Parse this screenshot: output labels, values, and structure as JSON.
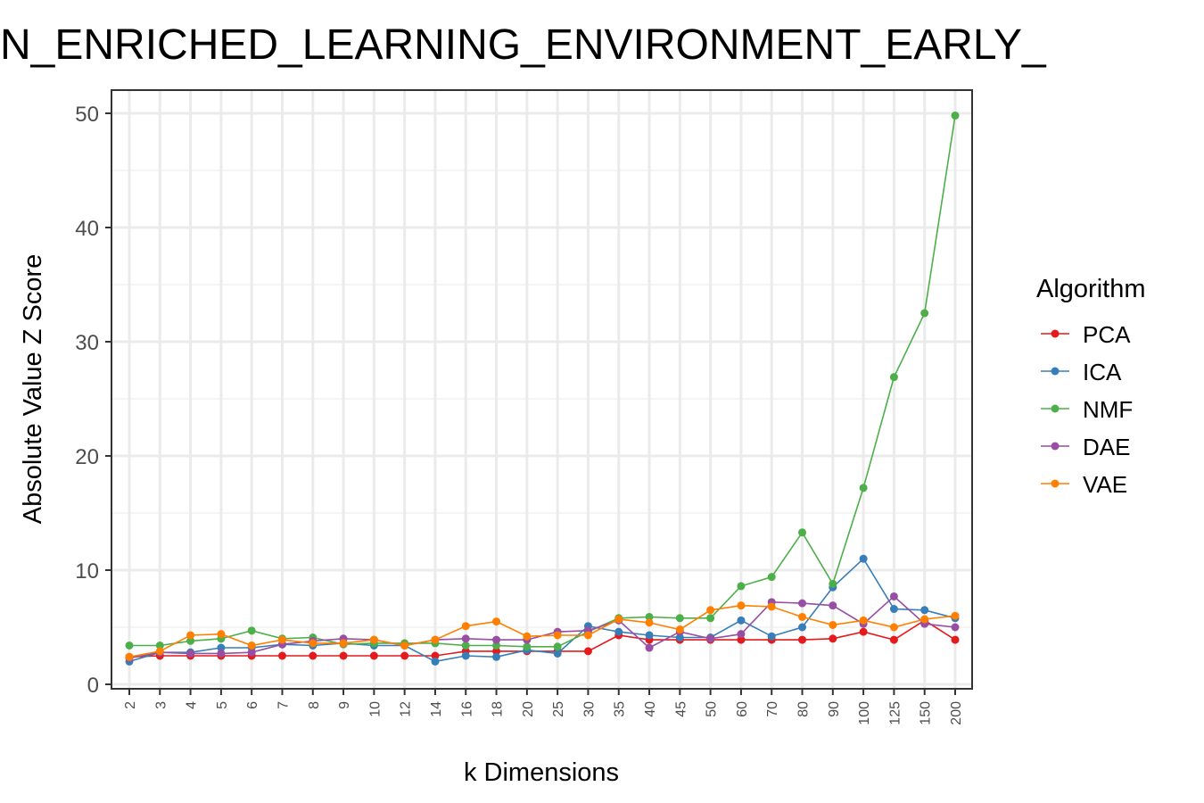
{
  "chart_data": {
    "type": "line",
    "title": "N_ENRICHED_LEARNING_ENVIRONMENT_EARLY_",
    "xlabel": "k Dimensions",
    "ylabel": "Absolute Value Z Score",
    "categories": [
      "2",
      "3",
      "4",
      "5",
      "6",
      "7",
      "8",
      "9",
      "10",
      "12",
      "14",
      "16",
      "18",
      "20",
      "25",
      "30",
      "35",
      "40",
      "45",
      "50",
      "60",
      "70",
      "80",
      "90",
      "100",
      "125",
      "150",
      "200"
    ],
    "ylim": [
      -1,
      52
    ],
    "yticks": [
      0,
      10,
      20,
      30,
      40,
      50
    ],
    "ytick_labels": [
      "0",
      "10",
      "20",
      "30",
      "40",
      "50"
    ],
    "grid": true,
    "legend": {
      "title": "Algorithm",
      "position": "right"
    },
    "series": [
      {
        "name": "PCA",
        "color": "#e41a1c",
        "values": [
          2.4,
          2.5,
          2.5,
          2.5,
          2.5,
          2.5,
          2.5,
          2.5,
          2.5,
          2.5,
          2.5,
          2.9,
          2.9,
          2.9,
          2.9,
          2.9,
          4.3,
          3.9,
          3.9,
          3.9,
          3.9,
          3.9,
          3.9,
          4.0,
          4.6,
          3.9,
          5.6,
          3.9
        ]
      },
      {
        "name": "ICA",
        "color": "#377eb8",
        "values": [
          2.0,
          2.8,
          2.8,
          3.2,
          3.2,
          3.5,
          3.4,
          3.6,
          3.4,
          3.4,
          2.0,
          2.5,
          2.4,
          3.0,
          2.7,
          5.1,
          4.6,
          4.3,
          4.1,
          4.1,
          5.6,
          4.2,
          5.0,
          8.5,
          11.0,
          6.6,
          6.5,
          5.8
        ]
      },
      {
        "name": "NMF",
        "color": "#4daf4a",
        "values": [
          3.4,
          3.4,
          3.8,
          4.0,
          4.7,
          4.0,
          4.1,
          3.5,
          3.6,
          3.6,
          3.6,
          3.4,
          3.4,
          3.3,
          3.3,
          4.6,
          5.8,
          5.9,
          5.8,
          5.8,
          8.6,
          9.4,
          13.3,
          8.8,
          17.2,
          26.9,
          32.5,
          49.8
        ]
      },
      {
        "name": "DAE",
        "color": "#984ea3",
        "values": [
          2.3,
          2.8,
          2.7,
          2.7,
          2.8,
          3.5,
          3.8,
          4.0,
          3.9,
          3.4,
          3.9,
          4.0,
          3.9,
          3.9,
          4.6,
          4.7,
          5.6,
          3.2,
          4.6,
          4.0,
          4.4,
          7.2,
          7.1,
          6.9,
          5.3,
          7.7,
          5.3,
          5.0
        ]
      },
      {
        "name": "VAE",
        "color": "#ff7f00",
        "values": [
          2.4,
          2.9,
          4.3,
          4.4,
          3.4,
          3.9,
          3.6,
          3.6,
          3.9,
          3.4,
          3.9,
          5.1,
          5.5,
          4.2,
          4.3,
          4.3,
          5.7,
          5.4,
          4.8,
          6.5,
          6.9,
          6.8,
          5.9,
          5.2,
          5.6,
          5.0,
          5.7,
          6.0
        ]
      }
    ]
  }
}
